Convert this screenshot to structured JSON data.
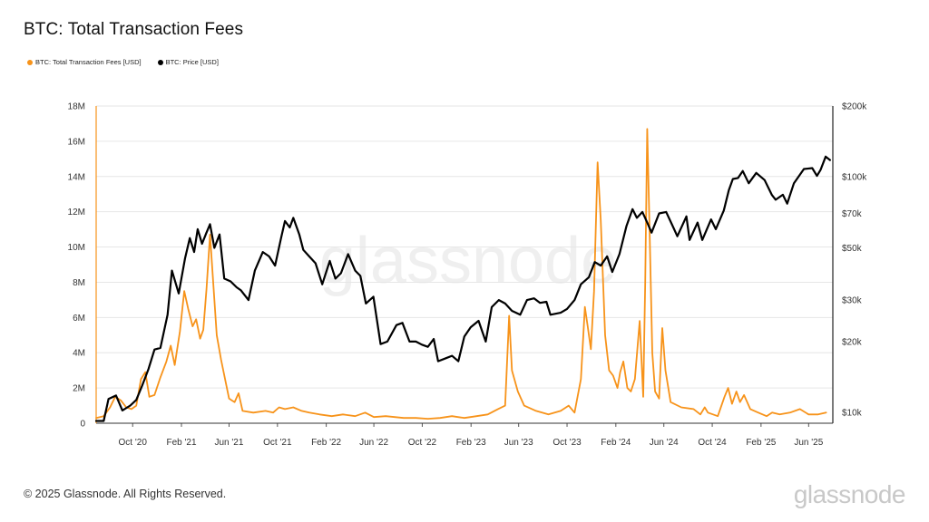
{
  "title": "BTC: Total Transaction Fees",
  "legend": {
    "fees_label": "BTC: Total Transaction Fees [USD]",
    "price_label": "BTC: Price [USD]"
  },
  "colors": {
    "fees": "#f7931a",
    "price": "#000000",
    "grid": "#e6e6e6",
    "axis": "#333333"
  },
  "watermark": "glassnode",
  "footer": {
    "copyright": "© 2025 Glassnode. All Rights Reserved.",
    "logo_text": "glassnode"
  },
  "chart_data": {
    "type": "line",
    "title": "BTC: Total Transaction Fees",
    "x_range": [
      "2020-07-01",
      "2025-08-01"
    ],
    "x_ticks": [
      "Oct '20",
      "Feb '21",
      "Jun '21",
      "Oct '21",
      "Feb '22",
      "Jun '22",
      "Oct '22",
      "Feb '23",
      "Jun '23",
      "Oct '23",
      "Feb '24",
      "Jun '24",
      "Oct '24",
      "Feb '25",
      "Jun '25"
    ],
    "left_axis": {
      "ticks": [
        "0",
        "2M",
        "4M",
        "6M",
        "8M",
        "10M",
        "12M",
        "14M",
        "16M",
        "18M"
      ],
      "ylim": [
        0,
        18000000
      ]
    },
    "right_axis": {
      "scale": "log",
      "ticks": [
        "$10k",
        "$20k",
        "$30k",
        "$50k",
        "$70k",
        "$100k",
        "$200k"
      ],
      "ylim": [
        9000,
        200000
      ]
    },
    "grid": "horizontal",
    "series": [
      {
        "name": "BTC: Total Transaction Fees [USD]",
        "axis": "left",
        "color": "#f7931a",
        "points": [
          [
            "2020-07-01",
            300000
          ],
          [
            "2020-07-20",
            400000
          ],
          [
            "2020-08-05",
            900000
          ],
          [
            "2020-08-18",
            1500000
          ],
          [
            "2020-09-01",
            1300000
          ],
          [
            "2020-09-15",
            900000
          ],
          [
            "2020-09-28",
            800000
          ],
          [
            "2020-10-10",
            1000000
          ],
          [
            "2020-10-22",
            2500000
          ],
          [
            "2020-11-02",
            2900000
          ],
          [
            "2020-11-12",
            1500000
          ],
          [
            "2020-11-25",
            1600000
          ],
          [
            "2020-12-10",
            2600000
          ],
          [
            "2020-12-25",
            3500000
          ],
          [
            "2021-01-05",
            4400000
          ],
          [
            "2021-01-15",
            3300000
          ],
          [
            "2021-01-28",
            5200000
          ],
          [
            "2021-02-08",
            7500000
          ],
          [
            "2021-02-18",
            6500000
          ],
          [
            "2021-03-01",
            5500000
          ],
          [
            "2021-03-10",
            5900000
          ],
          [
            "2021-03-20",
            4800000
          ],
          [
            "2021-03-28",
            5300000
          ],
          [
            "2021-04-05",
            7600000
          ],
          [
            "2021-04-14",
            10700000
          ],
          [
            "2021-04-22",
            8000000
          ],
          [
            "2021-05-01",
            5000000
          ],
          [
            "2021-05-12",
            3600000
          ],
          [
            "2021-05-22",
            2500000
          ],
          [
            "2021-06-01",
            1400000
          ],
          [
            "2021-06-15",
            1200000
          ],
          [
            "2021-06-25",
            1700000
          ],
          [
            "2021-07-05",
            700000
          ],
          [
            "2021-08-01",
            600000
          ],
          [
            "2021-09-01",
            700000
          ],
          [
            "2021-09-20",
            600000
          ],
          [
            "2021-10-05",
            900000
          ],
          [
            "2021-10-20",
            800000
          ],
          [
            "2021-11-10",
            900000
          ],
          [
            "2021-12-01",
            700000
          ],
          [
            "2021-12-20",
            600000
          ],
          [
            "2022-01-15",
            500000
          ],
          [
            "2022-02-15",
            400000
          ],
          [
            "2022-03-15",
            500000
          ],
          [
            "2022-04-15",
            400000
          ],
          [
            "2022-05-10",
            600000
          ],
          [
            "2022-06-01",
            350000
          ],
          [
            "2022-07-01",
            400000
          ],
          [
            "2022-08-15",
            300000
          ],
          [
            "2022-09-15",
            300000
          ],
          [
            "2022-10-15",
            250000
          ],
          [
            "2022-11-15",
            300000
          ],
          [
            "2022-12-15",
            400000
          ],
          [
            "2023-01-15",
            300000
          ],
          [
            "2023-02-15",
            400000
          ],
          [
            "2023-03-15",
            500000
          ],
          [
            "2023-04-10",
            800000
          ],
          [
            "2023-04-28",
            1000000
          ],
          [
            "2023-05-08",
            6100000
          ],
          [
            "2023-05-15",
            3000000
          ],
          [
            "2023-05-30",
            1800000
          ],
          [
            "2023-06-15",
            1000000
          ],
          [
            "2023-07-15",
            700000
          ],
          [
            "2023-08-15",
            500000
          ],
          [
            "2023-09-15",
            700000
          ],
          [
            "2023-10-05",
            1000000
          ],
          [
            "2023-10-20",
            600000
          ],
          [
            "2023-11-05",
            2500000
          ],
          [
            "2023-11-15",
            6600000
          ],
          [
            "2023-11-22",
            5500000
          ],
          [
            "2023-11-30",
            4200000
          ],
          [
            "2023-12-08",
            7500000
          ],
          [
            "2023-12-17",
            14800000
          ],
          [
            "2023-12-25",
            11500000
          ],
          [
            "2024-01-05",
            5000000
          ],
          [
            "2024-01-15",
            3000000
          ],
          [
            "2024-01-25",
            2700000
          ],
          [
            "2024-02-05",
            2000000
          ],
          [
            "2024-02-12",
            2900000
          ],
          [
            "2024-02-20",
            3500000
          ],
          [
            "2024-03-01",
            2000000
          ],
          [
            "2024-03-10",
            1800000
          ],
          [
            "2024-03-20",
            2500000
          ],
          [
            "2024-04-01",
            5800000
          ],
          [
            "2024-04-10",
            1500000
          ],
          [
            "2024-04-15",
            8000000
          ],
          [
            "2024-04-20",
            16700000
          ],
          [
            "2024-04-26",
            11000000
          ],
          [
            "2024-05-03",
            4000000
          ],
          [
            "2024-05-10",
            1800000
          ],
          [
            "2024-05-20",
            1400000
          ],
          [
            "2024-05-28",
            5400000
          ],
          [
            "2024-06-05",
            3000000
          ],
          [
            "2024-06-18",
            1200000
          ],
          [
            "2024-07-15",
            900000
          ],
          [
            "2024-08-15",
            800000
          ],
          [
            "2024-09-01",
            500000
          ],
          [
            "2024-09-12",
            900000
          ],
          [
            "2024-09-20",
            600000
          ],
          [
            "2024-10-15",
            400000
          ],
          [
            "2024-11-01",
            1500000
          ],
          [
            "2024-11-10",
            2000000
          ],
          [
            "2024-11-20",
            1100000
          ],
          [
            "2024-12-01",
            1800000
          ],
          [
            "2024-12-10",
            1200000
          ],
          [
            "2024-12-20",
            1600000
          ],
          [
            "2025-01-05",
            800000
          ],
          [
            "2025-01-25",
            600000
          ],
          [
            "2025-02-15",
            400000
          ],
          [
            "2025-03-01",
            600000
          ],
          [
            "2025-03-20",
            500000
          ],
          [
            "2025-04-15",
            600000
          ],
          [
            "2025-05-10",
            800000
          ],
          [
            "2025-06-01",
            500000
          ],
          [
            "2025-06-25",
            500000
          ],
          [
            "2025-07-15",
            600000
          ]
        ]
      },
      {
        "name": "BTC: Price [USD]",
        "axis": "right",
        "color": "#000000",
        "points": [
          [
            "2020-07-01",
            9200
          ],
          [
            "2020-07-20",
            9200
          ],
          [
            "2020-08-01",
            11400
          ],
          [
            "2020-08-20",
            11800
          ],
          [
            "2020-09-05",
            10200
          ],
          [
            "2020-09-25",
            10700
          ],
          [
            "2020-10-10",
            11300
          ],
          [
            "2020-10-25",
            13000
          ],
          [
            "2020-11-10",
            15300
          ],
          [
            "2020-11-25",
            18500
          ],
          [
            "2020-12-10",
            18800
          ],
          [
            "2020-12-28",
            26000
          ],
          [
            "2021-01-08",
            40000
          ],
          [
            "2021-01-25",
            32000
          ],
          [
            "2021-02-10",
            45000
          ],
          [
            "2021-02-22",
            55000
          ],
          [
            "2021-03-05",
            48000
          ],
          [
            "2021-03-14",
            60000
          ],
          [
            "2021-03-25",
            52000
          ],
          [
            "2021-04-05",
            58000
          ],
          [
            "2021-04-14",
            63000
          ],
          [
            "2021-04-25",
            50000
          ],
          [
            "2021-05-08",
            57000
          ],
          [
            "2021-05-20",
            37000
          ],
          [
            "2021-06-05",
            36000
          ],
          [
            "2021-06-20",
            34000
          ],
          [
            "2021-07-01",
            33000
          ],
          [
            "2021-07-20",
            30000
          ],
          [
            "2021-08-05",
            40000
          ],
          [
            "2021-08-25",
            48000
          ],
          [
            "2021-09-10",
            46000
          ],
          [
            "2021-09-25",
            42000
          ],
          [
            "2021-10-10",
            55000
          ],
          [
            "2021-10-20",
            65000
          ],
          [
            "2021-11-01",
            61000
          ],
          [
            "2021-11-10",
            67000
          ],
          [
            "2021-11-25",
            57000
          ],
          [
            "2021-12-05",
            49000
          ],
          [
            "2021-12-20",
            46000
          ],
          [
            "2022-01-05",
            43000
          ],
          [
            "2022-01-22",
            35000
          ],
          [
            "2022-02-10",
            44000
          ],
          [
            "2022-02-24",
            37000
          ],
          [
            "2022-03-10",
            39000
          ],
          [
            "2022-03-28",
            47000
          ],
          [
            "2022-04-15",
            40000
          ],
          [
            "2022-04-28",
            38000
          ],
          [
            "2022-05-12",
            29000
          ],
          [
            "2022-05-31",
            31000
          ],
          [
            "2022-06-18",
            19500
          ],
          [
            "2022-07-05",
            20000
          ],
          [
            "2022-07-28",
            23500
          ],
          [
            "2022-08-12",
            24000
          ],
          [
            "2022-08-30",
            20000
          ],
          [
            "2022-09-15",
            20000
          ],
          [
            "2022-09-30",
            19400
          ],
          [
            "2022-10-15",
            19000
          ],
          [
            "2022-10-30",
            20500
          ],
          [
            "2022-11-10",
            16500
          ],
          [
            "2022-11-30",
            17000
          ],
          [
            "2022-12-15",
            17400
          ],
          [
            "2022-12-31",
            16500
          ],
          [
            "2023-01-15",
            21000
          ],
          [
            "2023-01-31",
            23000
          ],
          [
            "2023-02-20",
            24500
          ],
          [
            "2023-03-10",
            20000
          ],
          [
            "2023-03-25",
            28000
          ],
          [
            "2023-04-12",
            30000
          ],
          [
            "2023-04-28",
            29000
          ],
          [
            "2023-05-15",
            27000
          ],
          [
            "2023-06-05",
            26000
          ],
          [
            "2023-06-22",
            30000
          ],
          [
            "2023-07-10",
            30500
          ],
          [
            "2023-07-25",
            29200
          ],
          [
            "2023-08-10",
            29500
          ],
          [
            "2023-08-20",
            26000
          ],
          [
            "2023-09-15",
            26500
          ],
          [
            "2023-10-01",
            27500
          ],
          [
            "2023-10-20",
            30000
          ],
          [
            "2023-11-05",
            35000
          ],
          [
            "2023-11-25",
            37500
          ],
          [
            "2023-12-10",
            43500
          ],
          [
            "2023-12-25",
            42000
          ],
          [
            "2024-01-10",
            46000
          ],
          [
            "2024-01-23",
            39500
          ],
          [
            "2024-02-10",
            47000
          ],
          [
            "2024-02-28",
            62000
          ],
          [
            "2024-03-14",
            73000
          ],
          [
            "2024-03-25",
            67000
          ],
          [
            "2024-04-08",
            71000
          ],
          [
            "2024-04-20",
            64000
          ],
          [
            "2024-05-01",
            58000
          ],
          [
            "2024-05-20",
            70000
          ],
          [
            "2024-06-07",
            71000
          ],
          [
            "2024-06-25",
            61000
          ],
          [
            "2024-07-05",
            56000
          ],
          [
            "2024-07-28",
            68000
          ],
          [
            "2024-08-05",
            54000
          ],
          [
            "2024-08-25",
            64000
          ],
          [
            "2024-09-06",
            54000
          ],
          [
            "2024-09-28",
            66000
          ],
          [
            "2024-10-10",
            60000
          ],
          [
            "2024-10-30",
            72000
          ],
          [
            "2024-11-12",
            88000
          ],
          [
            "2024-11-22",
            98000
          ],
          [
            "2024-12-05",
            99000
          ],
          [
            "2024-12-17",
            106000
          ],
          [
            "2025-01-01",
            94000
          ],
          [
            "2025-01-20",
            104000
          ],
          [
            "2025-02-10",
            97000
          ],
          [
            "2025-02-28",
            84000
          ],
          [
            "2025-03-10",
            80000
          ],
          [
            "2025-03-28",
            84000
          ],
          [
            "2025-04-08",
            77000
          ],
          [
            "2025-04-25",
            94000
          ],
          [
            "2025-05-20",
            108000
          ],
          [
            "2025-06-10",
            109000
          ],
          [
            "2025-06-22",
            101000
          ],
          [
            "2025-07-01",
            107000
          ],
          [
            "2025-07-14",
            122000
          ],
          [
            "2025-07-25",
            118000
          ]
        ]
      }
    ]
  }
}
